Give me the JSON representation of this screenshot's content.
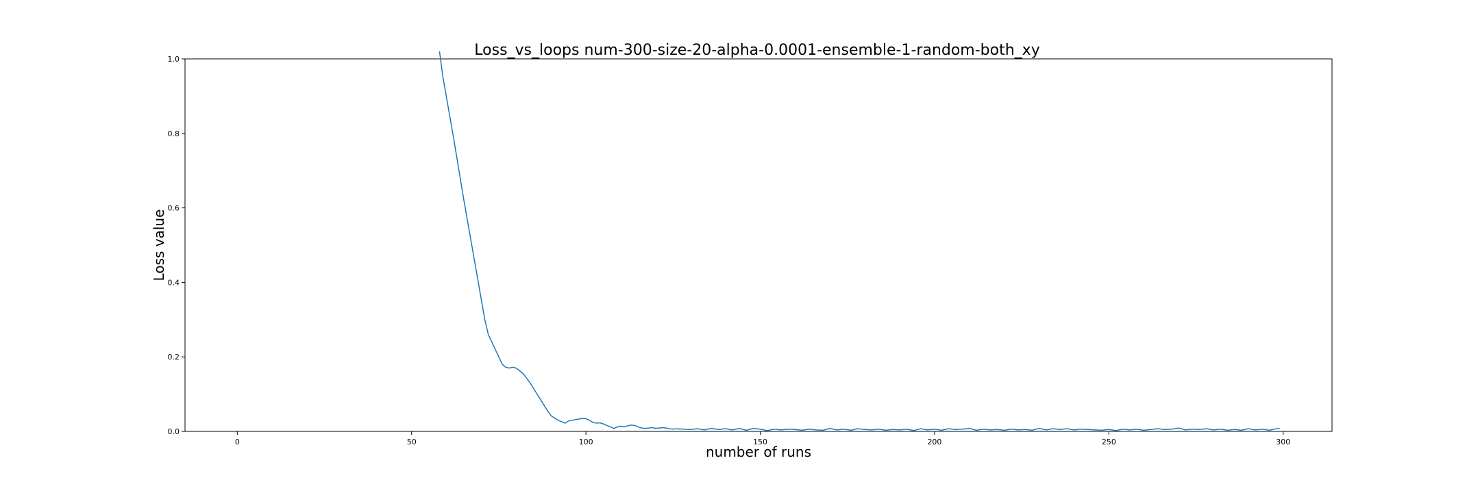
{
  "chart_data": {
    "type": "line",
    "title": "Loss_vs_loops num-300-size-20-alpha-0.0001-ensemble-1-random-both_xy",
    "xlabel": "number of runs",
    "ylabel": "Loss value",
    "xlim": [
      -15,
      314
    ],
    "ylim": [
      0,
      1.0
    ],
    "xticks": [
      0,
      50,
      100,
      150,
      200,
      250,
      300
    ],
    "yticks": [
      0.0,
      0.2,
      0.4,
      0.6,
      0.8,
      1.0
    ],
    "grid": false,
    "line_color": "#1f77b4",
    "series": [
      {
        "x": [
          58,
          59,
          62,
          65,
          68,
          71,
          72,
          73,
          74,
          75,
          76,
          77,
          78,
          79,
          80,
          82,
          84,
          86,
          88,
          89,
          90,
          92,
          94,
          95,
          96,
          98,
          99,
          100,
          101,
          102,
          103,
          104,
          105,
          106,
          107,
          108,
          109,
          110,
          111,
          112,
          113,
          114,
          115,
          116,
          117,
          118,
          119,
          120,
          121,
          122,
          123,
          124,
          125,
          126,
          128,
          130,
          132,
          134,
          136,
          138,
          140,
          142,
          144,
          146,
          148,
          150,
          152,
          154,
          156,
          158,
          160,
          162,
          164,
          166,
          168,
          170,
          172,
          174,
          176,
          178,
          180,
          182,
          184,
          186,
          188,
          190,
          192,
          194,
          196,
          198,
          200,
          202,
          204,
          206,
          208,
          210,
          212,
          214,
          216,
          218,
          220,
          222,
          224,
          226,
          228,
          230,
          232,
          234,
          236,
          238,
          240,
          242,
          244,
          246,
          248,
          250,
          252,
          254,
          256,
          258,
          260,
          262,
          264,
          266,
          268,
          270,
          272,
          274,
          276,
          278,
          280,
          282,
          284,
          286,
          288,
          290,
          292,
          294,
          296,
          298,
          299
        ],
        "y": [
          1.02,
          0.95,
          0.79,
          0.62,
          0.46,
          0.3,
          0.26,
          0.24,
          0.22,
          0.2,
          0.18,
          0.172,
          0.17,
          0.172,
          0.17,
          0.155,
          0.13,
          0.1,
          0.07,
          0.055,
          0.042,
          0.03,
          0.022,
          0.028,
          0.03,
          0.033,
          0.035,
          0.034,
          0.03,
          0.024,
          0.022,
          0.023,
          0.02,
          0.016,
          0.012,
          0.008,
          0.012,
          0.014,
          0.012,
          0.015,
          0.017,
          0.016,
          0.012,
          0.009,
          0.008,
          0.009,
          0.01,
          0.008,
          0.009,
          0.01,
          0.009,
          0.007,
          0.006,
          0.007,
          0.006,
          0.005,
          0.007,
          0.004,
          0.008,
          0.005,
          0.007,
          0.004,
          0.008,
          0.003,
          0.008,
          0.006,
          0.002,
          0.006,
          0.004,
          0.006,
          0.005,
          0.003,
          0.006,
          0.004,
          0.003,
          0.008,
          0.004,
          0.006,
          0.003,
          0.007,
          0.005,
          0.004,
          0.006,
          0.003,
          0.005,
          0.004,
          0.006,
          0.002,
          0.007,
          0.004,
          0.006,
          0.003,
          0.007,
          0.005,
          0.006,
          0.008,
          0.003,
          0.006,
          0.004,
          0.005,
          0.003,
          0.006,
          0.004,
          0.005,
          0.003,
          0.008,
          0.004,
          0.007,
          0.005,
          0.007,
          0.004,
          0.006,
          0.005,
          0.004,
          0.003,
          0.005,
          0.002,
          0.006,
          0.004,
          0.006,
          0.003,
          0.005,
          0.007,
          0.005,
          0.006,
          0.009,
          0.004,
          0.006,
          0.005,
          0.007,
          0.004,
          0.006,
          0.003,
          0.005,
          0.003,
          0.007,
          0.004,
          0.006,
          0.003,
          0.007,
          0.008
        ]
      }
    ]
  }
}
